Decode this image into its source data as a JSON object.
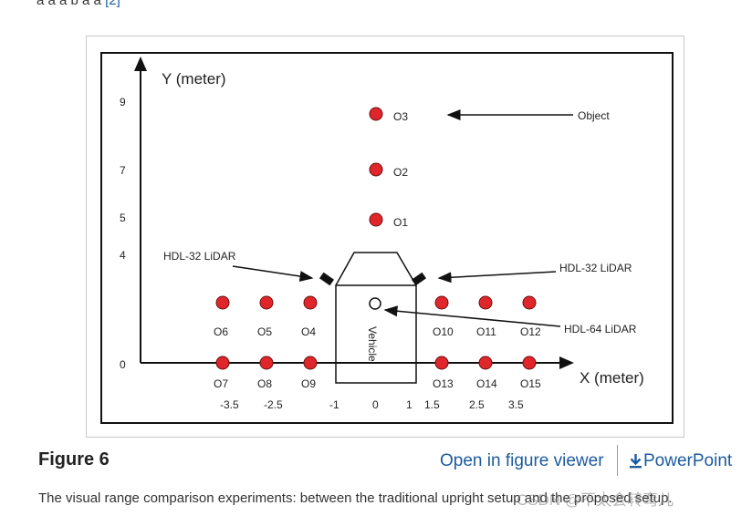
{
  "header_clip": {
    "text": "a a a b a a",
    "link": "[2]"
  },
  "figure": {
    "y_axis_label": "Y (meter)",
    "x_axis_label": "X (meter)",
    "y_ticks": [
      "9",
      "7",
      "5",
      "4",
      "0"
    ],
    "x_ticks": [
      "-3.5",
      "-2.5",
      "-1",
      "0",
      "1",
      "1.5",
      "2.5",
      "3.5"
    ],
    "object_label": "Object",
    "lidar_left": "HDL-32 LiDAR",
    "lidar_right": "HDL-32 LiDAR",
    "lidar_top": "HDL-64 LiDAR",
    "vehicle_label": "Vehicle",
    "objects": [
      {
        "name": "O1",
        "x": 0,
        "y": 5
      },
      {
        "name": "O2",
        "x": 0,
        "y": 7
      },
      {
        "name": "O3",
        "x": 0,
        "y": 9
      },
      {
        "name": "O4",
        "x": -1.5,
        "y": 1.5
      },
      {
        "name": "O5",
        "x": -2.5,
        "y": 1.5
      },
      {
        "name": "O6",
        "x": -3.5,
        "y": 1.5
      },
      {
        "name": "O7",
        "x": -3.5,
        "y": 0
      },
      {
        "name": "O8",
        "x": -2.5,
        "y": 0
      },
      {
        "name": "O9",
        "x": -1.5,
        "y": 0
      },
      {
        "name": "O10",
        "x": 1.5,
        "y": 1.5
      },
      {
        "name": "O11",
        "x": 2.5,
        "y": 1.5
      },
      {
        "name": "O12",
        "x": 3.5,
        "y": 1.5
      },
      {
        "name": "O13",
        "x": 1.5,
        "y": 0
      },
      {
        "name": "O14",
        "x": 2.5,
        "y": 0
      },
      {
        "name": "O15",
        "x": 3.5,
        "y": 0
      }
    ],
    "colors": {
      "object_fill": "#e0262b",
      "object_stroke": "#6b0f0f",
      "line": "#111111",
      "frame": "#111111"
    }
  },
  "caption": {
    "title": "Figure 6",
    "open_viewer": "Open in figure viewer",
    "powerpoint": "PowerPoint",
    "description": "The visual range comparison experiments: between the traditional upright setup and the proposed setup.",
    "watermark": "CSDN @不太会转弯儿"
  }
}
